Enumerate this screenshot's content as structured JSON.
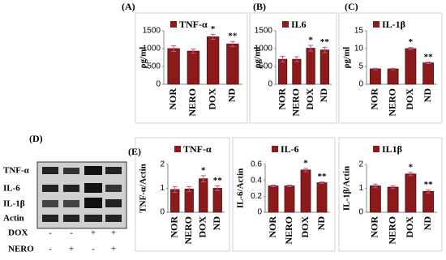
{
  "chart_data": [
    {
      "type": "bar",
      "panel_label": "(A)",
      "y_label": "ρg/ml",
      "categories": [
        "NOR",
        "NERO",
        "DOX",
        "ND"
      ],
      "series": [
        {
          "name": "TNF-α",
          "color": "#8b1a1a",
          "values": [
            1000,
            930,
            1330,
            1130
          ],
          "errors": [
            80,
            60,
            70,
            70
          ]
        }
      ],
      "significance": [
        null,
        null,
        "*",
        "**"
      ],
      "ylim": [
        0,
        1500
      ],
      "yticks": [
        0,
        500,
        1000,
        1500
      ]
    },
    {
      "type": "bar",
      "panel_label": "(B)",
      "y_label": "ρg/ml",
      "categories": [
        "NOR",
        "NERO",
        "DOX",
        "ND"
      ],
      "series": [
        {
          "name": "IL6",
          "color": "#8b1a1a",
          "values": [
            700,
            700,
            1010,
            960
          ],
          "errors": [
            80,
            70,
            80,
            80
          ]
        }
      ],
      "significance": [
        null,
        null,
        "*",
        "**"
      ],
      "ylim": [
        0,
        1500
      ],
      "yticks": [
        0,
        500,
        1000,
        1500
      ]
    },
    {
      "type": "bar",
      "panel_label": "(C)",
      "y_label": "ρg/ml",
      "categories": [
        "NOR",
        "NERO",
        "DOX",
        "ND"
      ],
      "series": [
        {
          "name": "IL-1β",
          "color": "#8b1a1a",
          "values": [
            4.3,
            4.3,
            10,
            6
          ],
          "errors": [
            0.2,
            0.2,
            0.3,
            0.2
          ]
        }
      ],
      "significance": [
        null,
        null,
        "*",
        "**"
      ],
      "ylim": [
        0,
        15
      ],
      "yticks": [
        0,
        5,
        10,
        15
      ]
    },
    {
      "type": "bar",
      "panel_label": "(E)",
      "y_label": "TNF-α/Actin",
      "categories": [
        "NOR",
        "NERO",
        "DOX",
        "ND"
      ],
      "series": [
        {
          "name": "TNF-α",
          "color": "#8b1a1a",
          "values": [
            0.95,
            0.97,
            1.4,
            1.0
          ],
          "errors": [
            0.12,
            0.1,
            0.13,
            0.1
          ]
        }
      ],
      "significance": [
        null,
        null,
        "*",
        "**"
      ],
      "ylim": [
        0,
        2
      ],
      "yticks": [
        0,
        1,
        2
      ]
    },
    {
      "type": "bar",
      "y_label": "IL-6/Actin",
      "categories": [
        "NOR",
        "NERO",
        "DOX",
        "ND"
      ],
      "series": [
        {
          "name": "IL-6",
          "color": "#8b1a1a",
          "values": [
            0.33,
            0.33,
            0.53,
            0.37
          ],
          "errors": [
            0.01,
            0.01,
            0.02,
            0.01
          ]
        }
      ],
      "significance": [
        null,
        null,
        "*",
        "**"
      ],
      "ylim": [
        0,
        0.6
      ],
      "yticks": [
        0,
        0.2,
        0.4,
        0.6
      ]
    },
    {
      "type": "bar",
      "y_label": "IL-1β/Actin",
      "categories": [
        "NOR",
        "NERO",
        "DOX",
        "ND"
      ],
      "series": [
        {
          "name": "IL1β",
          "color": "#8b1a1a",
          "values": [
            1.1,
            1.05,
            1.6,
            0.87
          ],
          "errors": [
            0.08,
            0.06,
            0.07,
            0.06
          ]
        }
      ],
      "significance": [
        null,
        null,
        "*",
        "**"
      ],
      "ylim": [
        0,
        2
      ],
      "yticks": [
        0,
        1,
        2
      ]
    }
  ],
  "blot": {
    "panel_label": "(D)",
    "rows": [
      "TNF-α",
      "IL-6",
      "IL-1β",
      "Actin"
    ],
    "conditions": [
      {
        "name": "DOX",
        "signs": [
          "-",
          "-",
          "+",
          "+"
        ]
      },
      {
        "name": "NERO",
        "signs": [
          "-",
          "+",
          "-",
          "+"
        ]
      }
    ]
  }
}
